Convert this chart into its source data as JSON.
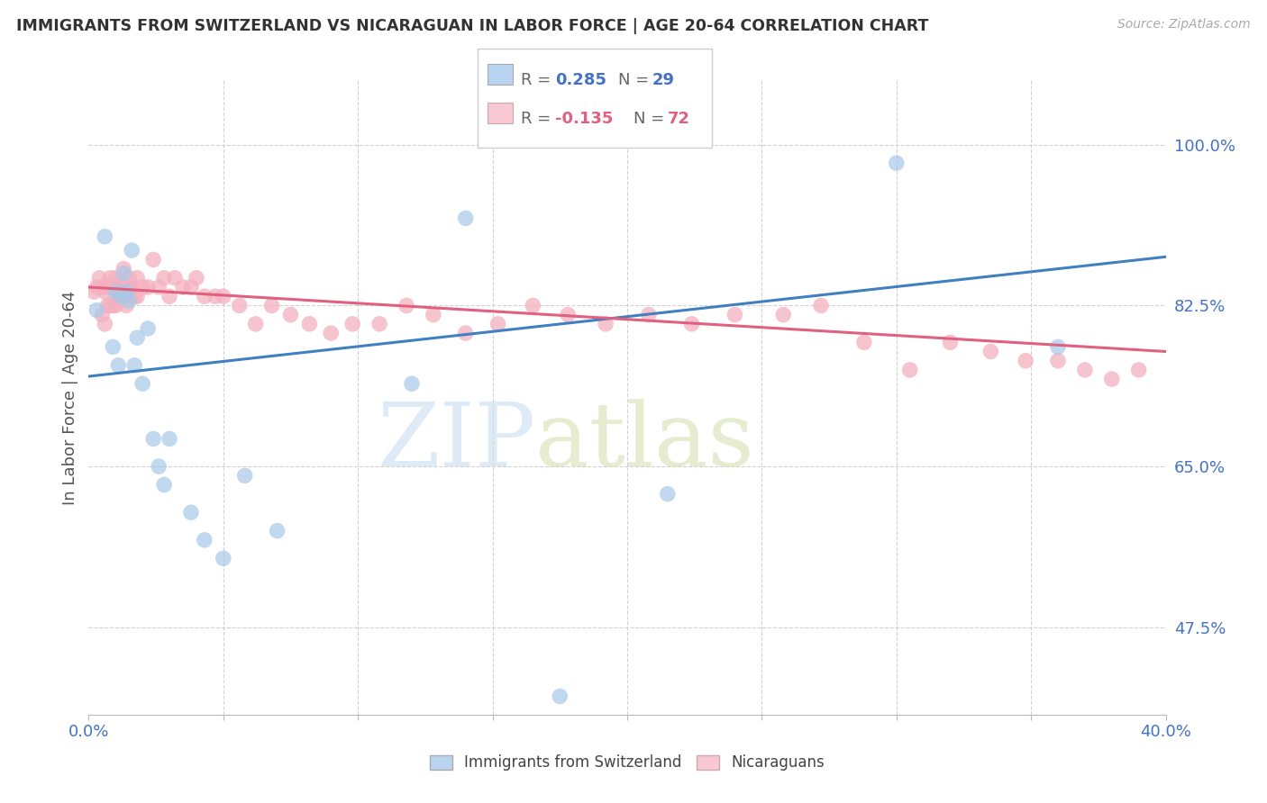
{
  "title": "IMMIGRANTS FROM SWITZERLAND VS NICARAGUAN IN LABOR FORCE | AGE 20-64 CORRELATION CHART",
  "source": "Source: ZipAtlas.com",
  "ylabel": "In Labor Force | Age 20-64",
  "xlim": [
    0.0,
    0.4
  ],
  "ylim": [
    0.38,
    1.07
  ],
  "ytick_vals": [
    0.475,
    0.65,
    0.825,
    1.0
  ],
  "ytick_labels": [
    "47.5%",
    "65.0%",
    "82.5%",
    "100.0%"
  ],
  "xtick_vals": [
    0.0,
    0.05,
    0.1,
    0.15,
    0.2,
    0.25,
    0.3,
    0.35,
    0.4
  ],
  "blue_scatter_color": "#a8c8e8",
  "pink_scatter_color": "#f4b0c0",
  "blue_line_color": "#4080c0",
  "pink_line_color": "#e06080",
  "blue_legend_color": "#b8d4f0",
  "pink_legend_color": "#f8c8d4",
  "swiss_x": [
    0.003,
    0.006,
    0.009,
    0.01,
    0.011,
    0.012,
    0.013,
    0.014,
    0.015,
    0.016,
    0.017,
    0.018,
    0.02,
    0.022,
    0.024,
    0.026,
    0.028,
    0.03,
    0.038,
    0.043,
    0.05,
    0.058,
    0.07,
    0.12,
    0.14,
    0.175,
    0.215,
    0.3,
    0.36
  ],
  "swiss_y": [
    0.82,
    0.9,
    0.78,
    0.84,
    0.76,
    0.835,
    0.86,
    0.84,
    0.83,
    0.885,
    0.76,
    0.79,
    0.74,
    0.8,
    0.68,
    0.65,
    0.63,
    0.68,
    0.6,
    0.57,
    0.55,
    0.64,
    0.58,
    0.74,
    0.92,
    0.4,
    0.62,
    0.98,
    0.78
  ],
  "nic_x": [
    0.002,
    0.003,
    0.004,
    0.005,
    0.005,
    0.006,
    0.006,
    0.007,
    0.007,
    0.008,
    0.008,
    0.009,
    0.009,
    0.01,
    0.01,
    0.011,
    0.011,
    0.012,
    0.013,
    0.013,
    0.014,
    0.015,
    0.016,
    0.017,
    0.018,
    0.02,
    0.022,
    0.024,
    0.026,
    0.028,
    0.03,
    0.032,
    0.035,
    0.038,
    0.04,
    0.043,
    0.047,
    0.05,
    0.056,
    0.062,
    0.068,
    0.075,
    0.082,
    0.09,
    0.098,
    0.108,
    0.118,
    0.128,
    0.14,
    0.152,
    0.165,
    0.178,
    0.192,
    0.208,
    0.224,
    0.24,
    0.258,
    0.272,
    0.288,
    0.305,
    0.32,
    0.335,
    0.348,
    0.36,
    0.37,
    0.38,
    0.39,
    0.01,
    0.012,
    0.014,
    0.016,
    0.018
  ],
  "nic_y": [
    0.84,
    0.845,
    0.855,
    0.845,
    0.815,
    0.84,
    0.805,
    0.845,
    0.825,
    0.855,
    0.825,
    0.845,
    0.825,
    0.845,
    0.825,
    0.835,
    0.845,
    0.845,
    0.865,
    0.835,
    0.845,
    0.855,
    0.845,
    0.835,
    0.855,
    0.845,
    0.845,
    0.875,
    0.845,
    0.855,
    0.835,
    0.855,
    0.845,
    0.845,
    0.855,
    0.835,
    0.835,
    0.835,
    0.825,
    0.805,
    0.825,
    0.815,
    0.805,
    0.795,
    0.805,
    0.805,
    0.825,
    0.815,
    0.795,
    0.805,
    0.825,
    0.815,
    0.805,
    0.815,
    0.805,
    0.815,
    0.815,
    0.825,
    0.785,
    0.755,
    0.785,
    0.775,
    0.765,
    0.765,
    0.755,
    0.745,
    0.755,
    0.855,
    0.835,
    0.825,
    0.845,
    0.835
  ],
  "swiss_line_x0": 0.0,
  "swiss_line_y0": 0.748,
  "swiss_line_x1": 0.4,
  "swiss_line_y1": 0.878,
  "nic_line_x0": 0.0,
  "nic_line_y0": 0.845,
  "nic_line_x1": 0.4,
  "nic_line_y1": 0.775
}
